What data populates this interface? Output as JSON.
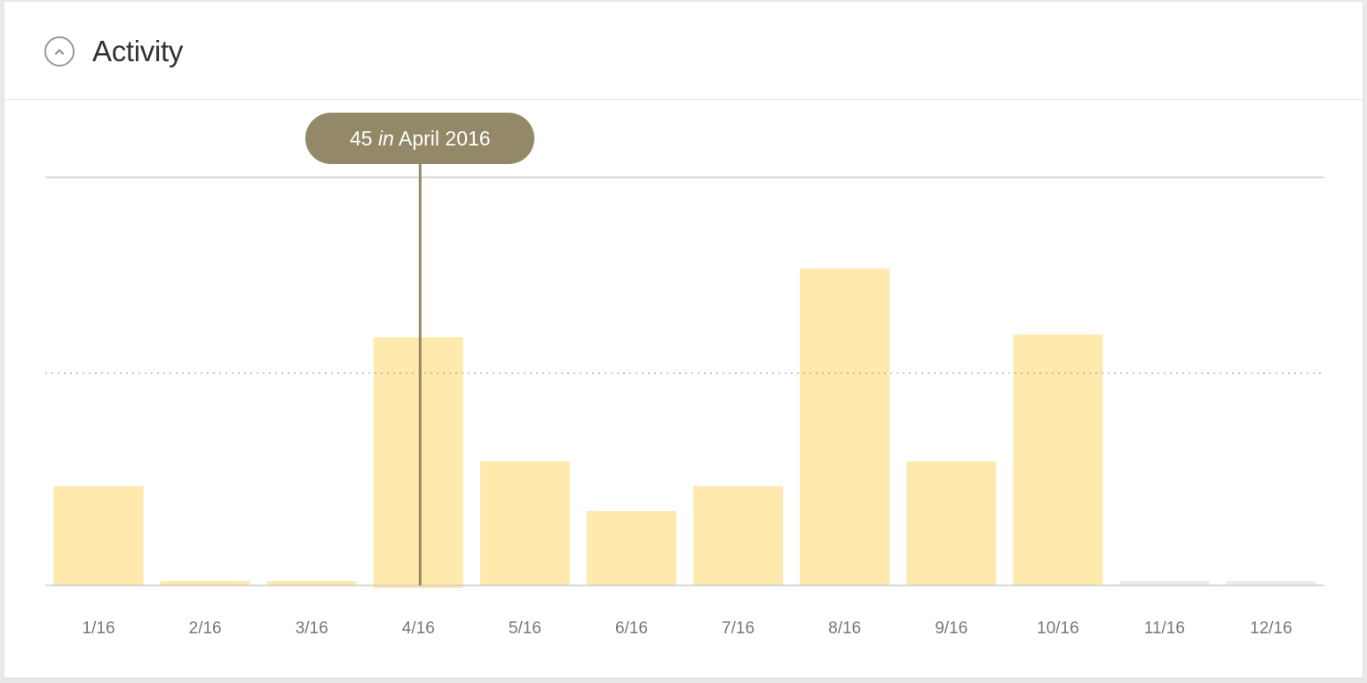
{
  "header": {
    "title": "Activity",
    "toggle_icon": "chevron-up-circle-icon"
  },
  "tooltip": {
    "value": "45",
    "connector": "in",
    "period": "April 2016",
    "category_index": 3
  },
  "colors": {
    "bar": "#ffe9ad",
    "bar_empty": "#ececec",
    "tooltip_bg": "#938867",
    "axis": "#cccccc",
    "tick_label": "#777777",
    "average_line": "#999999"
  },
  "chart_data": {
    "type": "bar",
    "categories": [
      "1/16",
      "2/16",
      "3/16",
      "4/16",
      "5/16",
      "6/16",
      "7/16",
      "8/16",
      "9/16",
      "10/16",
      "11/16",
      "12/16"
    ],
    "values": [
      18,
      0.8,
      0.8,
      45,
      22.5,
      13.5,
      18,
      57.5,
      22.5,
      45.5,
      0.8,
      0.8
    ],
    "empty": [
      false,
      false,
      false,
      false,
      false,
      false,
      false,
      false,
      false,
      false,
      true,
      true
    ],
    "average_line": 38.5,
    "ylim": [
      0,
      74
    ],
    "grid": "top line and dotted average line",
    "title": "",
    "xlabel": "",
    "ylabel": ""
  }
}
